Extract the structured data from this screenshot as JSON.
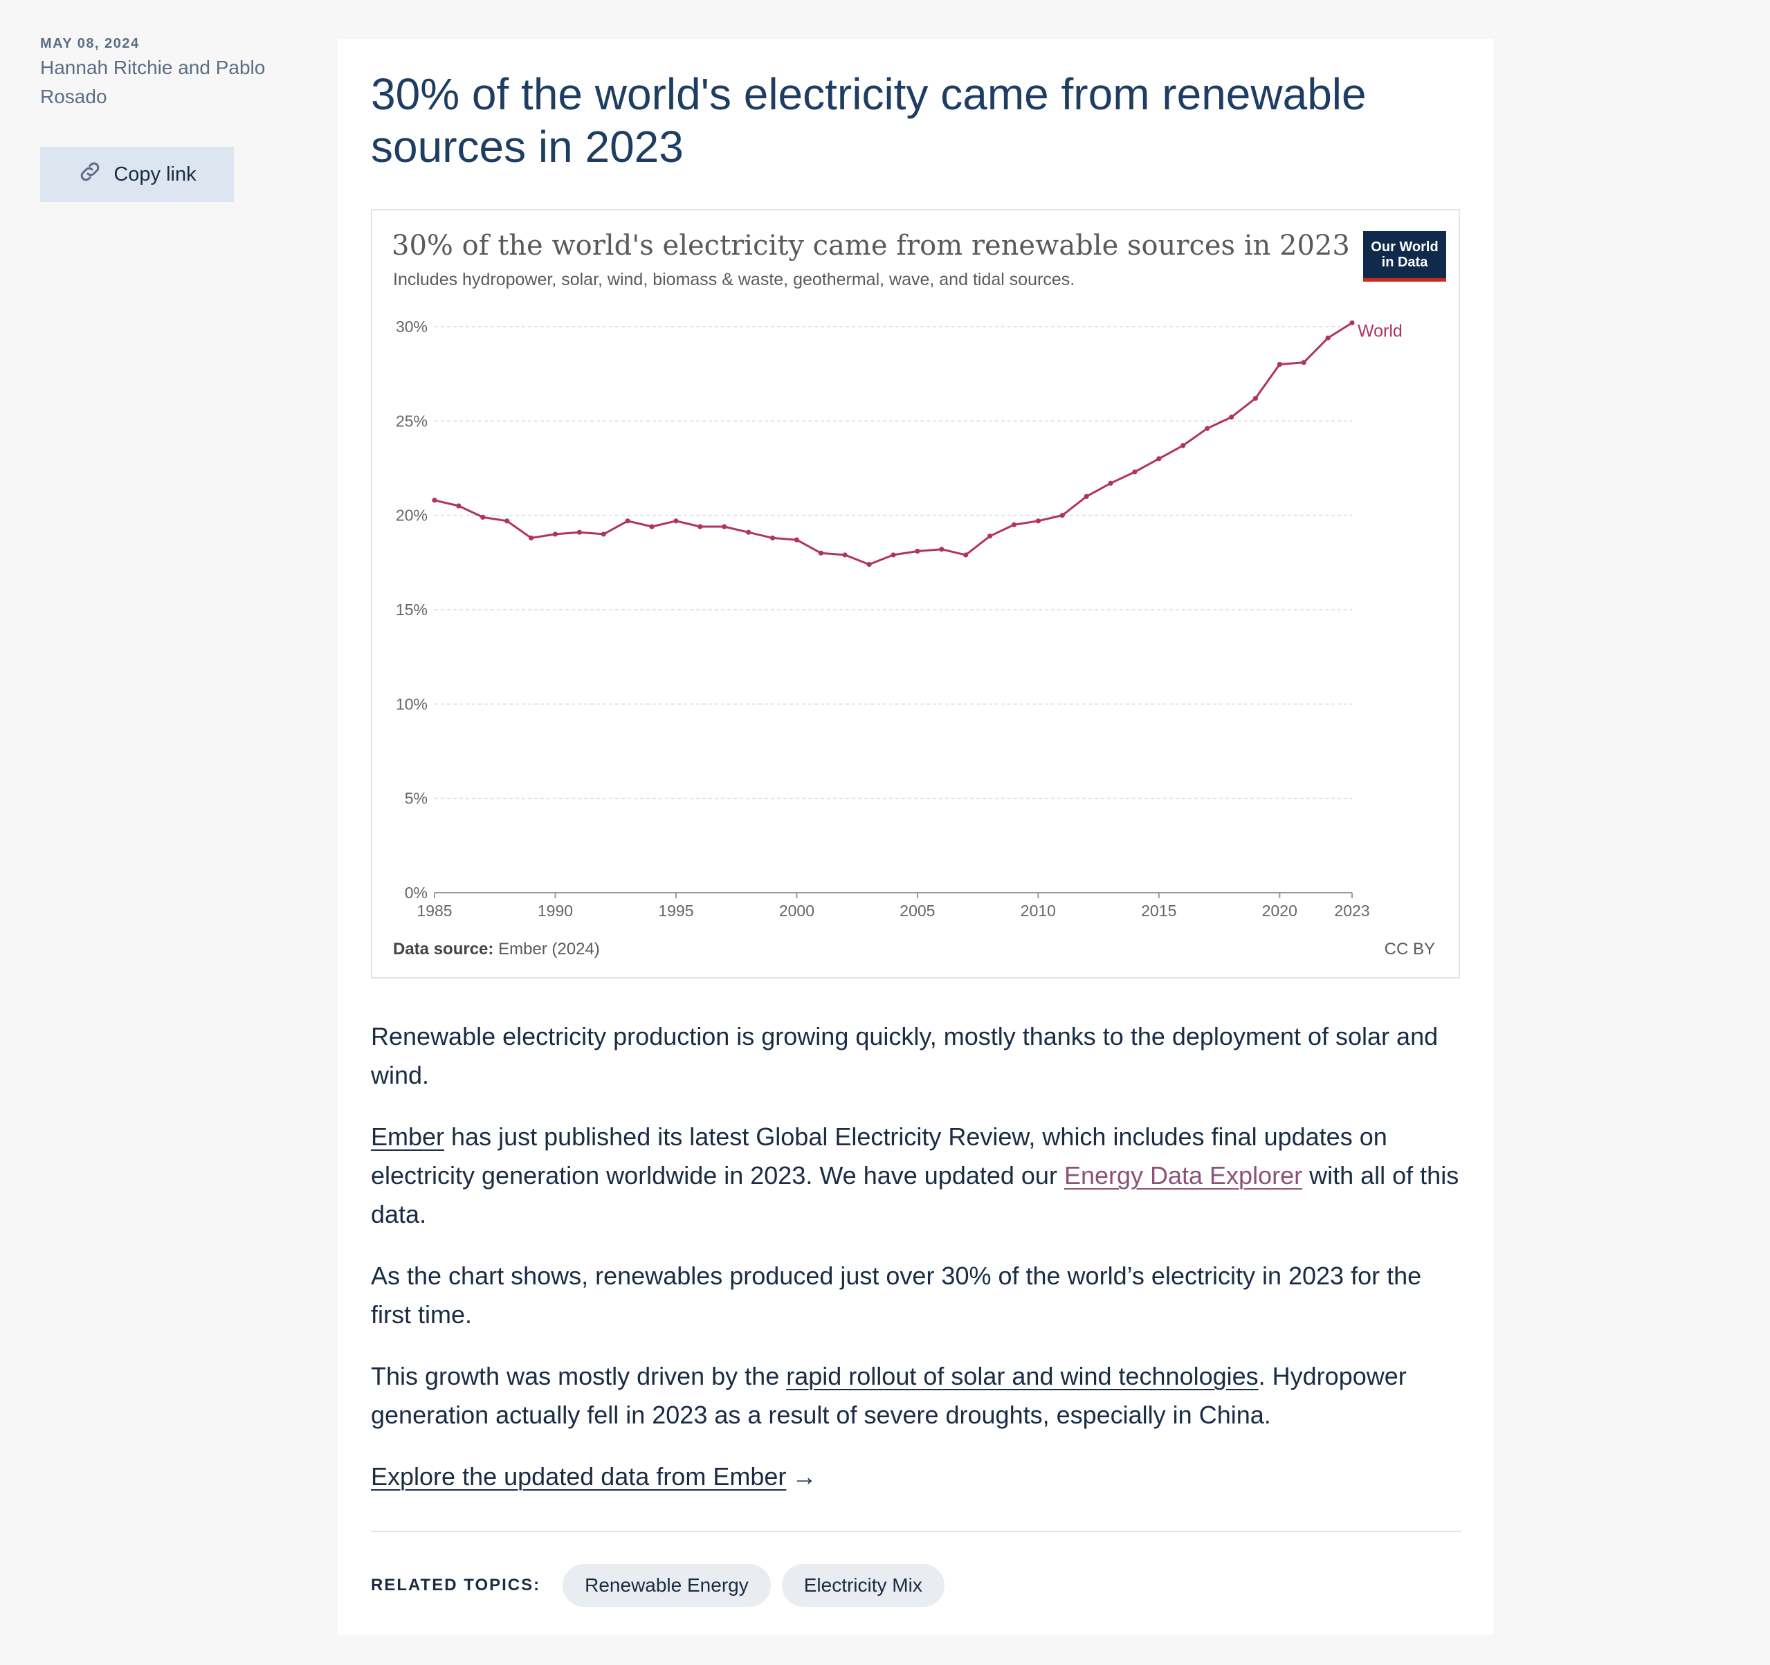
{
  "sidebar": {
    "date": "MAY 08, 2024",
    "authors": "Hannah Ritchie and Pablo Rosado",
    "copy_link_label": "Copy link",
    "copy_icon": "link-icon"
  },
  "article": {
    "title": "30% of the world's electricity came from renewable sources in 2023",
    "p1": "Renewable electricity production is growing quickly, mostly thanks to the deployment of solar and wind.",
    "p2_link1": "Ember",
    "p2_text1": " has just published its latest Global Electricity Review, which includes final updates on electricity generation worldwide in 2023. We have updated our ",
    "p2_link2": "Energy Data Explorer",
    "p2_text2": " with all of this data.",
    "p3": "As the chart shows, renewables produced just over 30% of the world’s electricity in 2023 for the first time.",
    "p4_text1": "This growth was mostly driven by the ",
    "p4_link": "rapid rollout of solar and wind technologies",
    "p4_text2": ". Hydropower generation actually fell in 2023 as a result of severe droughts, especially in China.",
    "explore_link": "Explore the updated data from Ember",
    "explore_arrow": "→"
  },
  "related": {
    "label": "RELATED TOPICS:",
    "topics": [
      "Renewable Energy",
      "Electricity Mix"
    ]
  },
  "colors": {
    "line": "#b13264",
    "heading": "#1d3d63",
    "logo_bg": "#0f2a4a",
    "logo_accent": "#ce261e"
  },
  "chart_data": {
    "type": "line",
    "title": "30% of the world's electricity came from renewable sources in 2023",
    "subtitle": "Includes hydropower, solar, wind, biomass & waste, geothermal, wave, and tidal sources.",
    "logo_text": "Our World in Data",
    "source_label": "Data source:",
    "source": "Ember (2024)",
    "license": "CC BY",
    "xlabel": "",
    "ylabel": "",
    "xlim": [
      1985,
      2023
    ],
    "ylim": [
      0,
      30
    ],
    "x_ticks": [
      1985,
      1990,
      1995,
      2000,
      2005,
      2010,
      2015,
      2020,
      2023
    ],
    "y_ticks": [
      0,
      5,
      10,
      15,
      20,
      25,
      30
    ],
    "y_tick_labels": [
      "0%",
      "5%",
      "10%",
      "15%",
      "20%",
      "25%",
      "30%"
    ],
    "series": [
      {
        "name": "World",
        "x": [
          1985,
          1986,
          1987,
          1988,
          1989,
          1990,
          1991,
          1992,
          1993,
          1994,
          1995,
          1996,
          1997,
          1998,
          1999,
          2000,
          2001,
          2002,
          2003,
          2004,
          2005,
          2006,
          2007,
          2008,
          2009,
          2010,
          2011,
          2012,
          2013,
          2014,
          2015,
          2016,
          2017,
          2018,
          2019,
          2020,
          2021,
          2022,
          2023
        ],
        "values": [
          20.8,
          20.5,
          19.9,
          19.7,
          18.8,
          19.0,
          19.1,
          19.0,
          19.7,
          19.4,
          19.7,
          19.4,
          19.4,
          19.1,
          18.8,
          18.7,
          18.0,
          17.9,
          17.4,
          17.9,
          18.1,
          18.2,
          17.9,
          18.9,
          19.5,
          19.7,
          20.0,
          21.0,
          21.7,
          22.3,
          23.0,
          23.7,
          24.6,
          25.2,
          26.2,
          28.0,
          28.1,
          29.4,
          30.2
        ]
      }
    ]
  }
}
